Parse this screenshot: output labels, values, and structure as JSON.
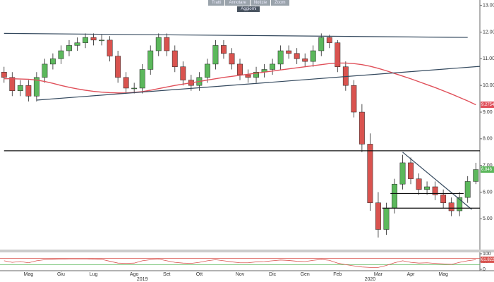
{
  "toolbar": {
    "buttons": [
      "Tratti",
      "Annotare",
      "Notizie",
      "Zoom"
    ],
    "action": "Aggiorni"
  },
  "chart_data": [
    {
      "type": "candlestick",
      "categories": [
        null,
        null,
        null,
        "Mag",
        null,
        null,
        null,
        "Giu",
        null,
        null,
        null,
        "Lug",
        null,
        null,
        null,
        null,
        "Ago",
        null,
        null,
        null,
        "Set",
        null,
        null,
        null,
        "Ott",
        null,
        null,
        null,
        null,
        "Nov",
        null,
        null,
        null,
        "Dic",
        null,
        null,
        null,
        "Gen",
        null,
        null,
        null,
        "Feb",
        null,
        null,
        null,
        null,
        "Mar",
        null,
        null,
        null,
        "Apr",
        null,
        null,
        null,
        "Mag",
        null,
        null,
        null,
        null
      ],
      "years": [
        null,
        null,
        null,
        null,
        null,
        null,
        null,
        null,
        null,
        null,
        null,
        null,
        null,
        null,
        null,
        null,
        null,
        "2019",
        null,
        null,
        null,
        null,
        null,
        null,
        null,
        null,
        null,
        null,
        null,
        null,
        null,
        null,
        null,
        null,
        null,
        null,
        null,
        null,
        null,
        null,
        null,
        null,
        null,
        null,
        null,
        "2020",
        null,
        null,
        null,
        null,
        null,
        null,
        null,
        null,
        null,
        null,
        null,
        null,
        null
      ],
      "open": [
        10.5,
        10.3,
        9.8,
        10.0,
        9.6,
        10.3,
        10.8,
        11.0,
        11.3,
        11.5,
        11.6,
        11.8,
        11.7,
        11.7,
        11.1,
        10.3,
        9.9,
        9.9,
        10.6,
        11.3,
        11.8,
        11.3,
        10.7,
        10.2,
        10.0,
        10.3,
        10.8,
        11.5,
        11.2,
        10.8,
        10.4,
        10.3,
        10.5,
        10.6,
        10.8,
        11.3,
        11.2,
        11.0,
        10.9,
        11.3,
        11.8,
        11.6,
        10.7,
        10.0,
        9.0,
        7.8,
        5.6,
        4.6,
        5.4,
        6.3,
        7.1,
        6.5,
        6.1,
        6.2,
        5.9,
        5.6,
        5.3,
        5.8,
        6.4
      ],
      "high": [
        10.7,
        10.5,
        10.2,
        10.2,
        10.5,
        11.0,
        11.2,
        11.5,
        11.7,
        11.8,
        11.95,
        11.95,
        11.9,
        11.85,
        11.3,
        10.5,
        10.1,
        10.8,
        11.5,
        11.95,
        11.95,
        11.5,
        10.9,
        10.4,
        10.5,
        11.0,
        11.7,
        11.7,
        11.4,
        11.0,
        10.6,
        10.7,
        10.8,
        11.0,
        11.5,
        11.5,
        11.4,
        11.2,
        11.5,
        11.95,
        11.9,
        11.7,
        10.9,
        10.2,
        9.3,
        8.2,
        6.0,
        5.6,
        6.5,
        7.4,
        7.3,
        6.7,
        6.4,
        6.4,
        6.1,
        5.8,
        6.0,
        6.6,
        7.1
      ],
      "low": [
        10.1,
        9.6,
        9.6,
        9.4,
        9.4,
        10.1,
        10.6,
        10.8,
        11.1,
        11.3,
        11.4,
        11.5,
        11.5,
        10.9,
        10.1,
        9.7,
        9.7,
        9.7,
        10.4,
        11.1,
        11.1,
        10.5,
        10.0,
        9.8,
        9.8,
        10.1,
        10.6,
        11.0,
        10.6,
        10.2,
        10.1,
        10.1,
        10.3,
        10.4,
        10.6,
        11.0,
        10.8,
        10.7,
        10.7,
        11.1,
        11.4,
        10.5,
        9.8,
        8.8,
        7.5,
        5.3,
        4.3,
        4.4,
        5.2,
        6.1,
        6.3,
        5.9,
        5.9,
        5.7,
        5.4,
        5.1,
        5.1,
        5.6,
        6.3
      ],
      "close": [
        10.3,
        9.8,
        10.0,
        9.6,
        10.3,
        10.8,
        11.0,
        11.3,
        11.5,
        11.6,
        11.8,
        11.7,
        11.7,
        11.1,
        10.3,
        9.9,
        9.9,
        10.6,
        11.3,
        11.8,
        11.3,
        10.7,
        10.2,
        10.0,
        10.3,
        10.8,
        11.5,
        11.2,
        10.8,
        10.4,
        10.3,
        10.5,
        10.6,
        10.8,
        11.3,
        11.2,
        11.0,
        10.9,
        11.3,
        11.8,
        11.6,
        10.7,
        10.0,
        9.0,
        7.8,
        5.6,
        4.6,
        5.4,
        6.3,
        7.1,
        6.5,
        6.1,
        6.2,
        5.9,
        5.6,
        5.3,
        5.8,
        6.4,
        6.846
      ],
      "close_label": "6.846",
      "up_color": "#5cb85c",
      "down_color": "#d9534f",
      "moving_average": {
        "color": "#e0505a",
        "value_label": "9.2754",
        "values": [
          10.25,
          10.25,
          10.24,
          10.23,
          10.2,
          10.15,
          10.08,
          10.0,
          9.93,
          9.87,
          9.82,
          9.78,
          9.75,
          9.73,
          9.72,
          9.72,
          9.74,
          9.77,
          9.82,
          9.88,
          9.94,
          10.0,
          10.05,
          10.1,
          10.15,
          10.2,
          10.25,
          10.3,
          10.34,
          10.38,
          10.42,
          10.46,
          10.5,
          10.54,
          10.58,
          10.62,
          10.66,
          10.7,
          10.74,
          10.78,
          10.82,
          10.84,
          10.84,
          10.82,
          10.78,
          10.72,
          10.64,
          10.55,
          10.45,
          10.35,
          10.25,
          10.14,
          10.03,
          9.92,
          9.8,
          9.68,
          9.55,
          9.42,
          9.2754
        ]
      },
      "trendlines": [
        {
          "color": "#34495e",
          "x": [
            0,
            57
          ],
          "y": [
            11.95,
            11.8
          ]
        },
        {
          "color": "#34495e",
          "x": [
            4,
            60
          ],
          "y": [
            9.45,
            10.75
          ]
        },
        {
          "color": "#111111",
          "x": [
            0,
            60
          ],
          "y": [
            7.55,
            7.55
          ]
        },
        {
          "color": "#34495e",
          "x": [
            49,
            57.5
          ],
          "y": [
            7.5,
            5.35
          ]
        },
        {
          "color": "#111111",
          "x": [
            47.5,
            56.5
          ],
          "y": [
            5.95,
            5.95
          ]
        },
        {
          "color": "#111111",
          "x": [
            46.5,
            58.5
          ],
          "y": [
            5.4,
            5.4
          ]
        }
      ],
      "ylim": [
        3.9,
        13.15
      ],
      "yticks": [
        {
          "value": 5,
          "label": "5.00"
        },
        {
          "value": 6,
          "label": "6.00"
        },
        {
          "value": 7,
          "label": "7.00"
        },
        {
          "value": 8,
          "label": "8.00"
        },
        {
          "value": 9,
          "label": "9.00"
        },
        {
          "value": 10,
          "label": "10.00"
        },
        {
          "value": 11,
          "label": "11.00"
        },
        {
          "value": 12,
          "label": "12.00"
        },
        {
          "value": 13,
          "label": "13.00"
        }
      ]
    },
    {
      "type": "line",
      "color": "#d9534f",
      "value_label": "61.8229",
      "values": [
        55,
        45,
        50,
        42,
        55,
        62,
        64,
        66,
        67,
        67,
        68,
        65,
        64,
        52,
        40,
        38,
        40,
        55,
        62,
        66,
        55,
        45,
        40,
        38,
        45,
        55,
        62,
        55,
        48,
        42,
        42,
        48,
        50,
        55,
        60,
        57,
        52,
        50,
        58,
        64,
        58,
        40,
        30,
        22,
        15,
        12,
        12,
        25,
        42,
        55,
        45,
        40,
        42,
        38,
        35,
        32,
        45,
        55,
        61.8229
      ],
      "levels": [
        {
          "value": 70,
          "color": "#d9534f"
        },
        {
          "value": 30,
          "color": "#5cb85c"
        }
      ],
      "ylim": [
        0,
        100
      ],
      "yticks": [
        0,
        50,
        100
      ]
    }
  ]
}
